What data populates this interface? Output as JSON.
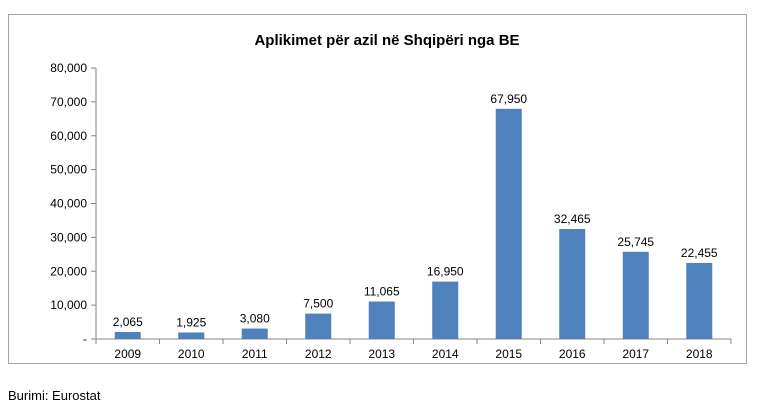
{
  "source_note": "Burimi: Eurostat",
  "chart_data": {
    "type": "bar",
    "title": "Aplikimet për azil në Shqipëri nga BE",
    "xlabel": "",
    "ylabel": "",
    "categories": [
      "2009",
      "2010",
      "2011",
      "2012",
      "2013",
      "2014",
      "2015",
      "2016",
      "2017",
      "2018"
    ],
    "values": [
      2065,
      1925,
      3080,
      7500,
      11065,
      16950,
      67950,
      32465,
      25745,
      22455
    ],
    "data_labels": [
      "2,065",
      "1,925",
      "3,080",
      "7,500",
      "11,065",
      "16,950",
      "67,950",
      "32,465",
      "25,745",
      "22,455"
    ],
    "ylim": [
      0,
      80000
    ],
    "y_ticks": [
      0,
      10000,
      20000,
      30000,
      40000,
      50000,
      60000,
      70000,
      80000
    ],
    "y_tick_labels": [
      "-",
      "10,000",
      "20,000",
      "30,000",
      "40,000",
      "50,000",
      "60,000",
      "70,000",
      "80,000"
    ],
    "grid": false,
    "legend": "none",
    "bar_color": "#4f81bd"
  }
}
